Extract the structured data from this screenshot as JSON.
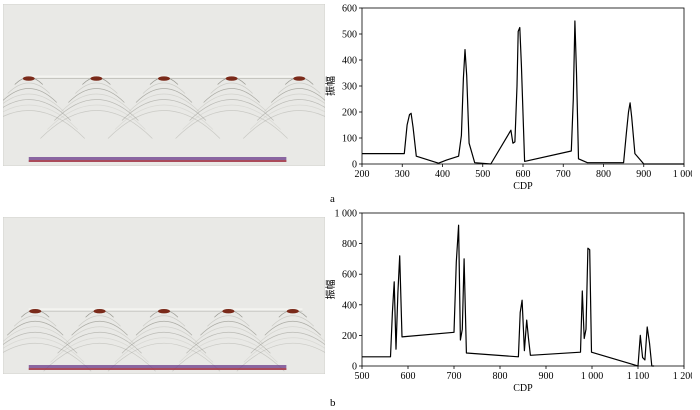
{
  "panels": [
    {
      "label": "a",
      "image": {
        "events": [
          0.08,
          0.29,
          0.5,
          0.71,
          0.92
        ],
        "event_depth": 0.46,
        "label": "seismic-section-a"
      },
      "chart_data": {
        "type": "line",
        "xlabel": "CDP",
        "ylabel": "振幅",
        "xlim": [
          200,
          1000
        ],
        "ylim": [
          0,
          600
        ],
        "xticks": [
          200,
          300,
          400,
          500,
          600,
          700,
          800,
          900,
          1000
        ],
        "xtick_labels": [
          "200",
          "300",
          "400",
          "500",
          "600",
          "700",
          "800",
          "900",
          "1 000"
        ],
        "yticks": [
          0,
          100,
          200,
          300,
          400,
          500,
          600
        ],
        "ytick_labels": [
          "0",
          "100",
          "200",
          "300",
          "400",
          "500",
          "600"
        ],
        "x": [
          200,
          305,
          312,
          318,
          322,
          327,
          335,
          390,
          410,
          440,
          447,
          452,
          456,
          460,
          466,
          480,
          520,
          570,
          575,
          580,
          585,
          588,
          592,
          596,
          604,
          720,
          725,
          729,
          733,
          738,
          760,
          850,
          857,
          862,
          866,
          870,
          878,
          900,
          1000
        ],
        "y": [
          40,
          40,
          150,
          190,
          195,
          140,
          30,
          3,
          15,
          30,
          110,
          330,
          440,
          340,
          80,
          5,
          0,
          130,
          80,
          85,
          300,
          510,
          525,
          380,
          10,
          50,
          250,
          550,
          350,
          20,
          5,
          5,
          120,
          200,
          235,
          180,
          40,
          0,
          0
        ]
      }
    },
    {
      "label": "b",
      "image": {
        "events": [
          0.1,
          0.3,
          0.5,
          0.7,
          0.9
        ],
        "event_depth": 0.6,
        "label": "seismic-section-b"
      },
      "chart_data": {
        "type": "line",
        "xlabel": "CDP",
        "ylabel": "振幅",
        "xlim": [
          500,
          1200
        ],
        "ylim": [
          0,
          1000
        ],
        "xticks": [
          500,
          600,
          700,
          800,
          900,
          1000,
          1100,
          1200
        ],
        "xtick_labels": [
          "500",
          "600",
          "700",
          "800",
          "900",
          "1 000",
          "1 100",
          "1 200"
        ],
        "yticks": [
          0,
          200,
          400,
          600,
          800,
          1000
        ],
        "ytick_labels": [
          "0",
          "200",
          "400",
          "600",
          "800",
          "1 000"
        ],
        "x": [
          500,
          562,
          566,
          570,
          574,
          578,
          582,
          587,
          700,
          705,
          710,
          714,
          718,
          722,
          727,
          840,
          844,
          848,
          853,
          858,
          862,
          866,
          975,
          979,
          983,
          987,
          991,
          995,
          999,
          1100,
          1105,
          1110,
          1115,
          1120,
          1125,
          1130,
          1135
        ],
        "y": [
          60,
          60,
          350,
          550,
          110,
          480,
          720,
          190,
          220,
          680,
          920,
          170,
          240,
          700,
          85,
          60,
          350,
          430,
          100,
          300,
          180,
          70,
          90,
          490,
          180,
          240,
          770,
          760,
          90,
          0,
          200,
          55,
          40,
          255,
          150,
          0,
          0
        ]
      }
    }
  ],
  "colors": {
    "line": "#000000",
    "axis": "#000000",
    "seismic_bg": "#e9e9e6"
  }
}
